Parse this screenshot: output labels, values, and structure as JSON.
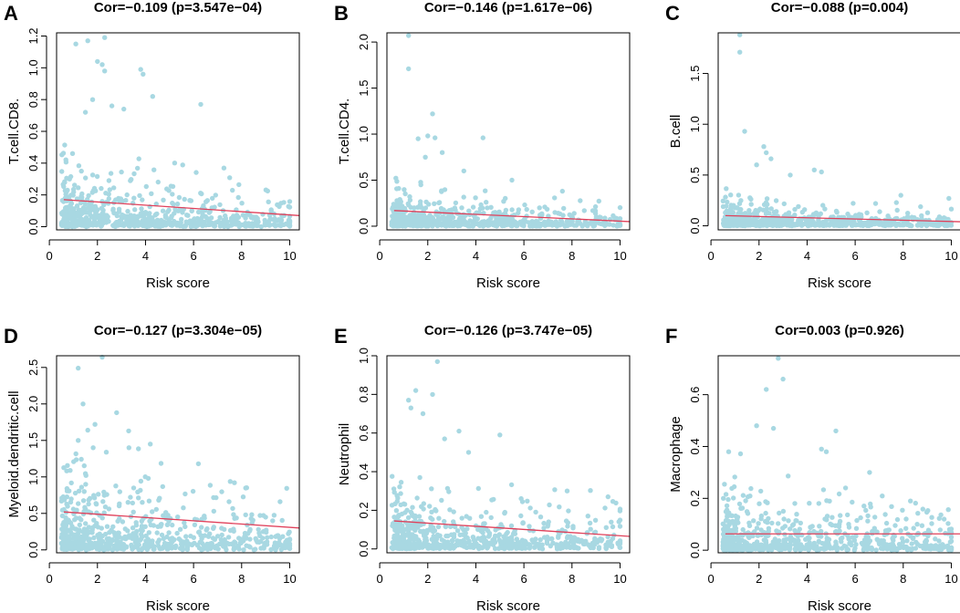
{
  "chart_data": [
    {
      "panel": "A",
      "type": "scatter",
      "title": "Cor=−0.109 (p=3.547e−04)",
      "xlabel": "Risk score",
      "ylabel": "T.cell.CD8.",
      "xlim": [
        0.3,
        10.4
      ],
      "ylim": [
        -0.02,
        1.22
      ],
      "xticks": [
        0,
        2,
        4,
        6,
        8,
        10
      ],
      "yticks": [
        0.0,
        0.2,
        0.4,
        0.6,
        0.8,
        1.0,
        1.2
      ],
      "yticklabels": [
        "0.0",
        "0.2",
        "0.4",
        "0.6",
        "0.8",
        "1.0",
        "1.2"
      ],
      "fit_line": {
        "x": [
          0.6,
          10.4
        ],
        "y": [
          0.17,
          0.07
        ]
      },
      "outliers": [
        [
          1.1,
          1.15
        ],
        [
          1.6,
          1.17
        ],
        [
          2.3,
          1.19
        ],
        [
          2.0,
          1.04
        ],
        [
          2.2,
          1.02
        ],
        [
          2.3,
          0.98
        ],
        [
          3.8,
          0.99
        ],
        [
          3.9,
          0.96
        ],
        [
          4.3,
          0.82
        ],
        [
          6.3,
          0.77
        ],
        [
          1.8,
          0.8
        ],
        [
          2.6,
          0.76
        ],
        [
          1.5,
          0.72
        ],
        [
          3.1,
          0.74
        ]
      ],
      "cloud": {
        "n": 700,
        "scale": 0.1,
        "floor": 0.0,
        "cap": 0.65,
        "seed": 11
      }
    },
    {
      "panel": "B",
      "type": "scatter",
      "title": "Cor=−0.146 (p=1.617e−06)",
      "xlabel": "Risk score",
      "ylabel": "T.cell.CD4.",
      "xlim": [
        0.3,
        10.4
      ],
      "ylim": [
        -0.04,
        2.1
      ],
      "xticks": [
        0,
        2,
        4,
        6,
        8,
        10
      ],
      "yticks": [
        0.0,
        0.5,
        1.0,
        1.5,
        2.0
      ],
      "yticklabels": [
        "0.0",
        "0.5",
        "1.0",
        "1.5",
        "2.0"
      ],
      "fit_line": {
        "x": [
          0.6,
          10.4
        ],
        "y": [
          0.17,
          0.05
        ]
      },
      "outliers": [
        [
          1.2,
          2.07
        ],
        [
          1.2,
          1.71
        ],
        [
          2.2,
          1.22
        ],
        [
          2.0,
          0.98
        ],
        [
          2.3,
          0.96
        ],
        [
          4.3,
          0.96
        ],
        [
          1.6,
          0.95
        ],
        [
          2.6,
          0.8
        ],
        [
          1.9,
          0.75
        ],
        [
          5.5,
          0.5
        ],
        [
          7.6,
          0.38
        ],
        [
          3.5,
          0.6
        ]
      ],
      "cloud": {
        "n": 700,
        "scale": 0.1,
        "floor": 0.0,
        "cap": 0.55,
        "seed": 23
      }
    },
    {
      "panel": "C",
      "type": "scatter",
      "title": "Cor=−0.088 (p=0.004)",
      "xlabel": "Risk score",
      "ylabel": "B.cell",
      "xlim": [
        0.3,
        10.4
      ],
      "ylim": [
        -0.04,
        1.9
      ],
      "xticks": [
        0,
        2,
        4,
        6,
        8,
        10
      ],
      "yticks": [
        0.0,
        0.5,
        1.0,
        1.5
      ],
      "yticklabels": [
        "0.0",
        "0.5",
        "1.0",
        "1.5"
      ],
      "fit_line": {
        "x": [
          0.6,
          10.4
        ],
        "y": [
          0.1,
          0.04
        ]
      },
      "outliers": [
        [
          1.2,
          1.88
        ],
        [
          1.2,
          1.71
        ],
        [
          1.4,
          0.93
        ],
        [
          2.2,
          0.78
        ],
        [
          2.3,
          0.72
        ],
        [
          2.5,
          0.66
        ],
        [
          4.3,
          0.55
        ],
        [
          4.6,
          0.53
        ],
        [
          1.9,
          0.6
        ],
        [
          3.3,
          0.5
        ],
        [
          7.9,
          0.3
        ],
        [
          9.9,
          0.27
        ]
      ],
      "cloud": {
        "n": 700,
        "scale": 0.07,
        "floor": 0.0,
        "cap": 0.45,
        "seed": 37
      }
    },
    {
      "panel": "D",
      "type": "scatter",
      "title": "Cor=−0.127 (p=3.304e−05)",
      "xlabel": "Risk score",
      "ylabel": "Myeloid.dendritic.cell",
      "xlim": [
        0.3,
        10.4
      ],
      "ylim": [
        -0.04,
        2.66
      ],
      "xticks": [
        0,
        2,
        4,
        6,
        8,
        10
      ],
      "yticks": [
        0.0,
        0.5,
        1.0,
        1.5,
        2.0,
        2.5
      ],
      "yticklabels": [
        "0.0",
        "0.5",
        "1.0",
        "1.5",
        "2.0",
        "2.5"
      ],
      "fit_line": {
        "x": [
          0.6,
          10.4
        ],
        "y": [
          0.52,
          0.3
        ]
      },
      "outliers": [
        [
          2.2,
          2.64
        ],
        [
          1.2,
          2.49
        ],
        [
          1.4,
          2.0
        ],
        [
          1.9,
          1.72
        ],
        [
          2.8,
          1.88
        ],
        [
          1.6,
          1.64
        ],
        [
          3.3,
          1.63
        ],
        [
          1.2,
          1.5
        ],
        [
          4.2,
          1.45
        ],
        [
          6.2,
          1.18
        ],
        [
          7.7,
          0.92
        ],
        [
          9.6,
          0.66
        ]
      ],
      "cloud": {
        "n": 700,
        "scale": 0.32,
        "floor": 0.0,
        "cap": 1.4,
        "seed": 41
      }
    },
    {
      "panel": "E",
      "type": "scatter",
      "title": "Cor=−0.126 (p=3.747e−05)",
      "xlabel": "Risk score",
      "ylabel": "Neutrophil",
      "xlim": [
        0.3,
        10.4
      ],
      "ylim": [
        -0.02,
        1.0
      ],
      "xticks": [
        0,
        2,
        4,
        6,
        8,
        10
      ],
      "yticks": [
        0.0,
        0.2,
        0.4,
        0.6,
        0.8,
        1.0
      ],
      "yticklabels": [
        "0.0",
        "0.2",
        "0.4",
        "0.6",
        "0.8",
        "1.0"
      ],
      "fit_line": {
        "x": [
          0.6,
          10.4
        ],
        "y": [
          0.145,
          0.065
        ]
      },
      "outliers": [
        [
          2.4,
          0.97
        ],
        [
          1.5,
          0.82
        ],
        [
          2.2,
          0.8
        ],
        [
          1.2,
          0.77
        ],
        [
          1.3,
          0.73
        ],
        [
          1.8,
          0.7
        ],
        [
          5.0,
          0.59
        ],
        [
          3.3,
          0.61
        ],
        [
          2.7,
          0.57
        ],
        [
          3.7,
          0.5
        ],
        [
          9.5,
          0.27
        ],
        [
          7.8,
          0.3
        ]
      ],
      "cloud": {
        "n": 700,
        "scale": 0.1,
        "floor": 0.0,
        "cap": 0.5,
        "seed": 53
      }
    },
    {
      "panel": "F",
      "type": "scatter",
      "title": "Cor=0.003 (p=0.926)",
      "xlabel": "Risk score",
      "ylabel": "Macrophage",
      "xlim": [
        0.3,
        10.4
      ],
      "ylim": [
        -0.01,
        0.75
      ],
      "xticks": [
        0,
        2,
        4,
        6,
        8,
        10
      ],
      "yticks": [
        0.0,
        0.2,
        0.4,
        0.6
      ],
      "yticklabels": [
        "0.0",
        "0.2",
        "0.4",
        "0.6"
      ],
      "fit_line": {
        "x": [
          0.6,
          10.4
        ],
        "y": [
          0.063,
          0.063
        ]
      },
      "outliers": [
        [
          2.8,
          0.74
        ],
        [
          3.0,
          0.66
        ],
        [
          2.3,
          0.62
        ],
        [
          1.9,
          0.48
        ],
        [
          2.6,
          0.47
        ],
        [
          5.2,
          0.46
        ],
        [
          4.6,
          0.39
        ],
        [
          4.8,
          0.38
        ],
        [
          6.6,
          0.3
        ],
        [
          8.3,
          0.19
        ],
        [
          9.7,
          0.12
        ],
        [
          5.6,
          0.24
        ]
      ],
      "cloud": {
        "n": 700,
        "scale": 0.075,
        "floor": 0.0,
        "cap": 0.38,
        "seed": 67
      }
    }
  ],
  "colors": {
    "point": "#a8d8e2",
    "fit_line": "#e0405a",
    "axis": "#000000"
  }
}
